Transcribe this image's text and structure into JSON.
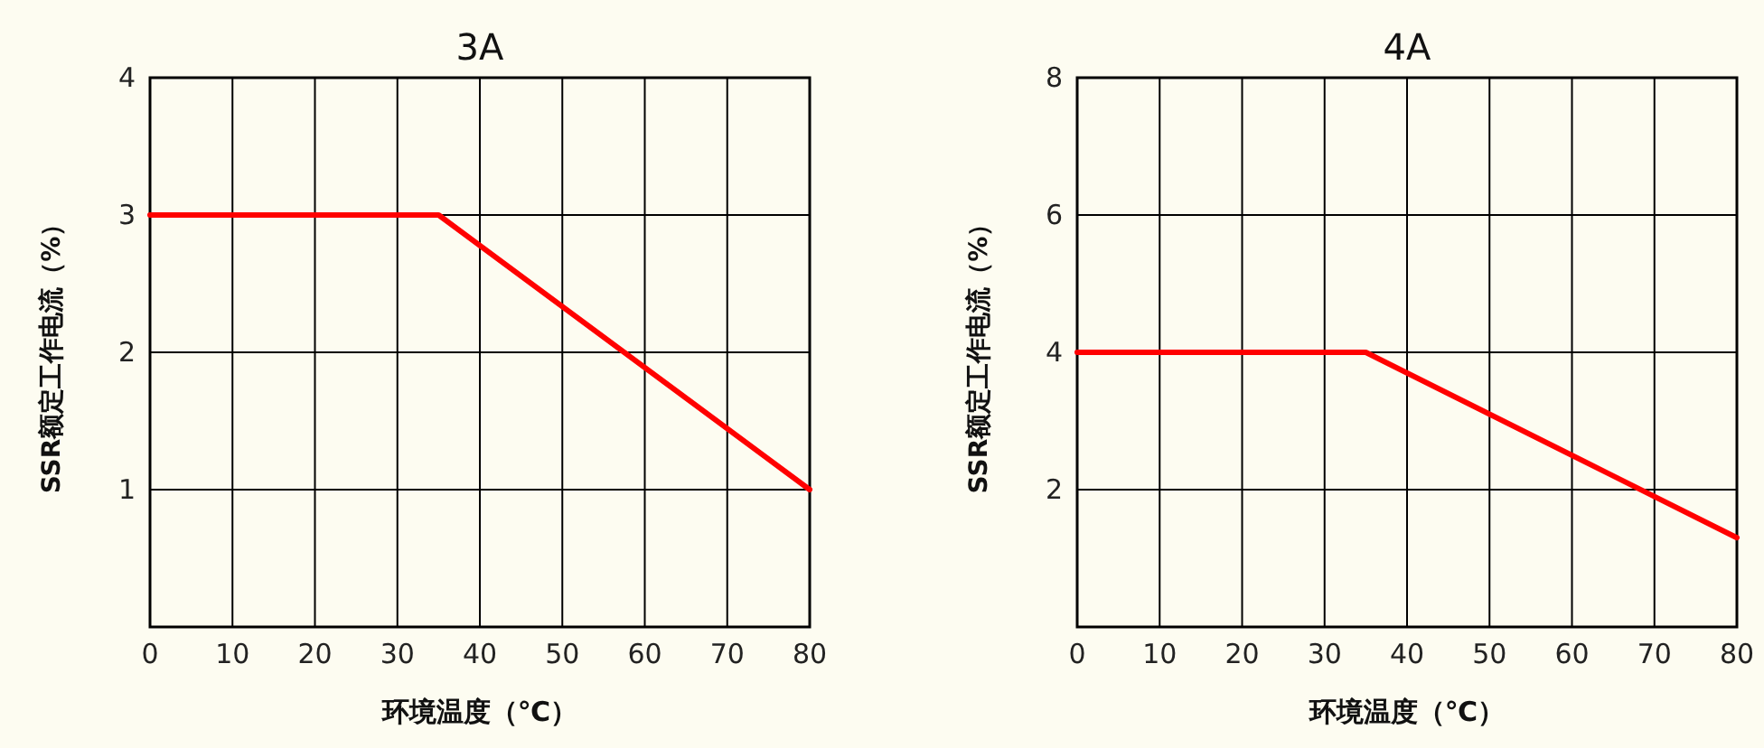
{
  "chart_data": [
    {
      "type": "line",
      "title": "3A",
      "xlabel": "环境温度（℃）",
      "ylabel": "SSR额定工作电流（%）",
      "x": [
        0,
        35,
        80
      ],
      "values": [
        3,
        3,
        1
      ],
      "color": "#ff0000",
      "xlim": [
        0,
        80
      ],
      "ylim": [
        0,
        4
      ],
      "xticks": [
        0,
        10,
        20,
        30,
        40,
        50,
        60,
        70,
        80
      ],
      "yticks": [
        1,
        2,
        3,
        4
      ],
      "grid": true
    },
    {
      "type": "line",
      "title": "4A",
      "xlabel": "环境温度（℃）",
      "ylabel": "SSR额定工作电流（%）",
      "x": [
        0,
        35,
        80
      ],
      "values": [
        4,
        4,
        1.3
      ],
      "color": "#ff0000",
      "xlim": [
        0,
        80
      ],
      "ylim": [
        0,
        8
      ],
      "xticks": [
        0,
        10,
        20,
        30,
        40,
        50,
        60,
        70,
        80
      ],
      "yticks": [
        2,
        4,
        6,
        8
      ],
      "grid": true
    }
  ]
}
